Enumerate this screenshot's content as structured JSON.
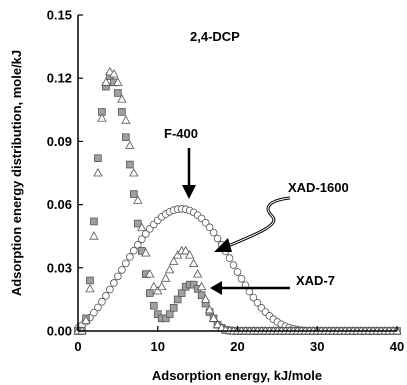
{
  "chart_data": {
    "type": "scatter",
    "title": "",
    "xlabel": "Adsorption energy, kJ/mole",
    "ylabel": "Adsorption energy distribution, mole/kJ",
    "xlim": [
      0,
      40
    ],
    "ylim": [
      0,
      0.15
    ],
    "xticks": [
      "0",
      "10",
      "20",
      "30",
      "40"
    ],
    "yticks": [
      "0.00",
      "0.03",
      "0.06",
      "0.09",
      "0.12",
      "0.15"
    ],
    "grid": false,
    "legend": "none",
    "series": [
      {
        "name": "F-400",
        "marker": "circle",
        "color": "#ffffff",
        "edge": "#555555",
        "x": [
          0.0,
          0.5,
          1.0,
          1.5,
          2.0,
          2.5,
          3.0,
          3.5,
          4.0,
          4.5,
          5.0,
          5.5,
          6.0,
          6.5,
          7.0,
          7.5,
          8.0,
          8.5,
          9.0,
          9.5,
          10.0,
          10.5,
          11.0,
          11.5,
          12.0,
          12.5,
          13.0,
          13.5,
          14.0,
          14.5,
          15.0,
          15.5,
          16.0,
          16.5,
          17.0,
          17.5,
          18.0,
          18.5,
          19.0,
          19.5,
          20.0,
          20.5,
          21.0,
          21.5,
          22.0,
          22.5,
          23.0,
          23.5,
          24.0,
          24.5,
          25.0,
          25.5,
          26.0,
          26.5,
          27.0,
          27.5,
          28.0,
          28.5,
          29.0,
          29.5,
          30.0,
          30.5,
          31.0,
          31.5,
          32.0,
          32.5,
          33.0
        ],
        "y": [
          0.0013,
          0.0027,
          0.0044,
          0.0064,
          0.0087,
          0.0112,
          0.0139,
          0.0167,
          0.0197,
          0.0228,
          0.0259,
          0.029,
          0.0321,
          0.0352,
          0.0381,
          0.0409,
          0.0436,
          0.0461,
          0.0485,
          0.0506,
          0.0525,
          0.0542,
          0.0555,
          0.0566,
          0.0574,
          0.0578,
          0.058,
          0.0578,
          0.0572,
          0.0563,
          0.055,
          0.0534,
          0.0514,
          0.0492,
          0.0467,
          0.0439,
          0.0409,
          0.0378,
          0.0346,
          0.0313,
          0.028,
          0.0248,
          0.0217,
          0.0187,
          0.0159,
          0.0134,
          0.011,
          0.009,
          0.0072,
          0.0056,
          0.0043,
          0.0032,
          0.0023,
          0.0016,
          0.0011,
          0.0007,
          0.0004,
          0.0002,
          0.0001,
          0.0001,
          0.0,
          0.0,
          0.0,
          0.0,
          0.0,
          0.0,
          0.0
        ]
      },
      {
        "name": "XAD-1600",
        "marker": "triangle",
        "color": "#ffffff",
        "edge": "#555555",
        "x": [
          0.0,
          0.5,
          1.0,
          1.5,
          2.0,
          2.5,
          3.0,
          3.5,
          4.0,
          4.5,
          5.0,
          5.5,
          6.0,
          6.5,
          7.0,
          7.5,
          8.0,
          8.5,
          9.0,
          9.5,
          10.0,
          10.5,
          11.0,
          11.5,
          12.0,
          12.5,
          13.0,
          13.5,
          14.0,
          14.5,
          15.0,
          15.5,
          16.0,
          16.5,
          17.0,
          17.5,
          18.0,
          18.5,
          19.0,
          19.5,
          20.0,
          20.5,
          21.0,
          21.5,
          22.0,
          22.5,
          23.0,
          23.5,
          24.0,
          24.5,
          25.0,
          25.5,
          26.0,
          26.5,
          27.0,
          27.5,
          28.0,
          28.5,
          29.0,
          29.5,
          30.0,
          30.5,
          31.0,
          31.5,
          32.0,
          32.5,
          33.0,
          33.5,
          34.0,
          34.5,
          35.0,
          35.5,
          36.0,
          36.5,
          37.0,
          37.5,
          38.0,
          38.5,
          39.0,
          39.5,
          40.0
        ],
        "y": [
          0.0,
          0.0,
          0.005,
          0.02,
          0.045,
          0.075,
          0.101,
          0.118,
          0.123,
          0.122,
          0.118,
          0.11,
          0.1,
          0.088,
          0.075,
          0.062,
          0.049,
          0.037,
          0.027,
          0.021,
          0.019,
          0.021,
          0.025,
          0.029,
          0.033,
          0.036,
          0.038,
          0.038,
          0.036,
          0.032,
          0.027,
          0.021,
          0.015,
          0.01,
          0.006,
          0.003,
          0.0015,
          0.0005,
          0.0002,
          0.0,
          0.0,
          0.0,
          0.0,
          0.0,
          0.0,
          0.0,
          0.0,
          0.0,
          0.0,
          0.0,
          0.0,
          0.0,
          0.0,
          0.0,
          0.0,
          0.0,
          0.0,
          0.0,
          0.0,
          0.0,
          0.0,
          0.0,
          0.0,
          0.0,
          0.0,
          0.0,
          0.0,
          0.0,
          0.0,
          0.0,
          0.0,
          0.0,
          0.0,
          0.0,
          0.0,
          0.0,
          0.0,
          0.0,
          0.0,
          0.0,
          0.0
        ]
      },
      {
        "name": "XAD-7",
        "marker": "square",
        "color": "#a0a0a0",
        "edge": "#555555",
        "x": [
          0.0,
          0.5,
          1.0,
          1.5,
          2.0,
          2.5,
          3.0,
          3.5,
          4.0,
          4.5,
          5.0,
          5.5,
          6.0,
          6.5,
          7.0,
          7.5,
          8.0,
          8.5,
          9.0,
          9.5,
          10.0,
          10.5,
          11.0,
          11.5,
          12.0,
          12.5,
          13.0,
          13.5,
          14.0,
          14.5,
          15.0,
          15.5,
          16.0,
          16.5,
          17.0,
          17.5,
          18.0,
          18.5,
          19.0,
          19.5,
          20.0,
          20.5,
          21.0,
          21.5,
          22.0,
          22.5,
          23.0,
          23.5,
          24.0,
          24.5,
          25.0,
          25.5,
          26.0,
          26.5,
          27.0,
          27.5,
          28.0,
          28.5,
          29.0,
          29.5,
          30.0,
          30.5,
          31.0,
          31.5,
          32.0,
          32.5,
          33.0,
          33.5,
          34.0,
          34.5,
          35.0,
          35.5,
          36.0,
          36.5,
          37.0,
          37.5,
          38.0,
          38.5,
          39.0,
          39.5,
          40.0
        ],
        "y": [
          0.0,
          0.0,
          0.006,
          0.024,
          0.052,
          0.082,
          0.104,
          0.116,
          0.121,
          0.118,
          0.113,
          0.104,
          0.092,
          0.079,
          0.065,
          0.051,
          0.038,
          0.027,
          0.018,
          0.012,
          0.008,
          0.006,
          0.006,
          0.008,
          0.011,
          0.015,
          0.018,
          0.021,
          0.022,
          0.022,
          0.02,
          0.017,
          0.013,
          0.009,
          0.006,
          0.003,
          0.0015,
          0.0005,
          0.0002,
          0.0,
          0.0,
          0.0,
          0.0,
          0.0,
          0.0,
          0.0,
          0.0,
          0.0,
          0.0,
          0.0,
          0.0,
          0.0,
          0.0,
          0.0,
          0.0,
          0.0,
          0.0,
          0.0,
          0.0,
          0.0,
          0.0,
          0.0,
          0.0,
          0.0,
          0.0,
          0.0,
          0.0,
          0.0,
          0.0,
          0.0,
          0.0,
          0.0,
          0.0,
          0.0,
          0.0,
          0.0,
          0.0,
          0.0,
          0.0,
          0.0,
          0.0
        ]
      }
    ],
    "annotations": [
      {
        "text": "2,4-DCP"
      },
      {
        "text": "F-400"
      },
      {
        "text": "XAD-1600"
      },
      {
        "text": "XAD-7"
      }
    ]
  }
}
